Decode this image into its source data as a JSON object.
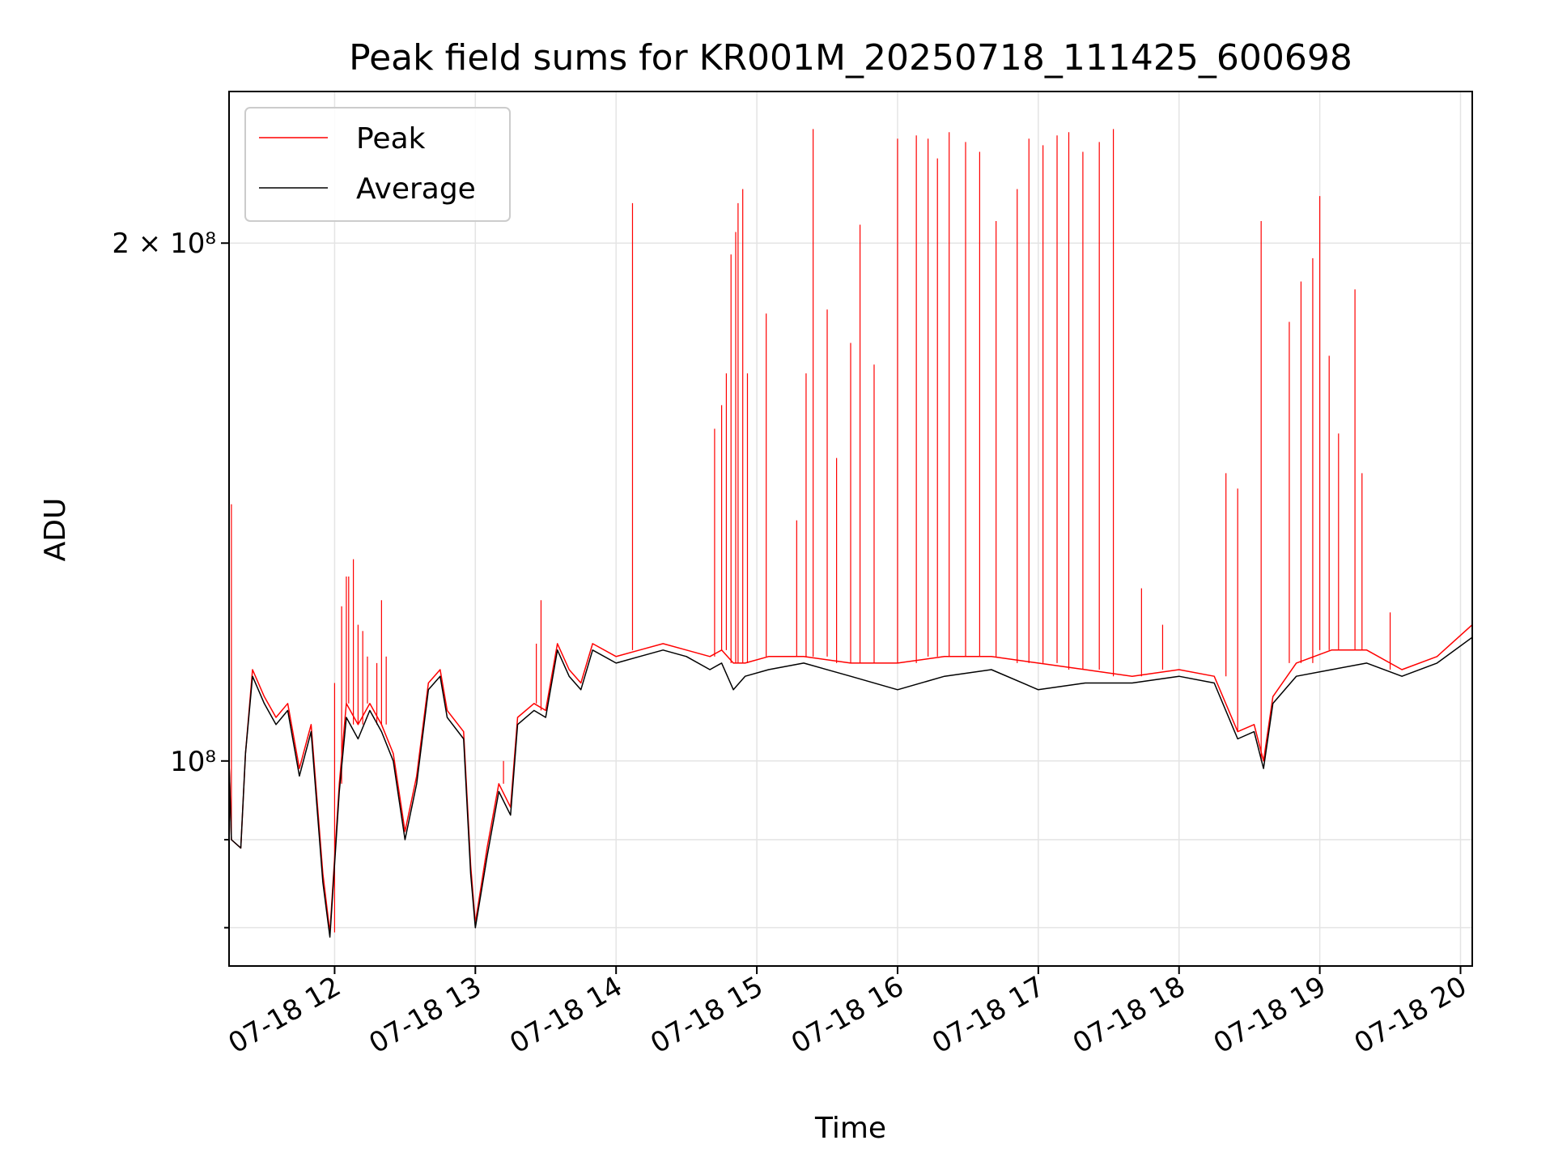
{
  "chart_data": {
    "type": "line",
    "title": "Peak field sums for KR001M_20250718_111425_600698",
    "xlabel": "Time",
    "ylabel": "ADU",
    "y_scale": "log",
    "ylim": [
      76000000,
      245000000
    ],
    "xlim": [
      "2025-07-18 11:15",
      "2025-07-18 20:05"
    ],
    "grid": true,
    "legend_position": "top-left",
    "x_ticks": [
      {
        "t": "2025-07-18 12:00",
        "label": "07-18 12"
      },
      {
        "t": "2025-07-18 13:00",
        "label": "07-18 13"
      },
      {
        "t": "2025-07-18 14:00",
        "label": "07-18 14"
      },
      {
        "t": "2025-07-18 15:00",
        "label": "07-18 15"
      },
      {
        "t": "2025-07-18 16:00",
        "label": "07-18 16"
      },
      {
        "t": "2025-07-18 17:00",
        "label": "07-18 17"
      },
      {
        "t": "2025-07-18 18:00",
        "label": "07-18 18"
      },
      {
        "t": "2025-07-18 19:00",
        "label": "07-18 19"
      },
      {
        "t": "2025-07-18 20:00",
        "label": "07-18 20"
      }
    ],
    "y_ticks": [
      {
        "v": 100000000,
        "label": "10⁸",
        "labeled": true
      },
      {
        "v": 200000000,
        "label": "2 × 10⁸",
        "labeled": true
      },
      {
        "v": 80000000,
        "label": "",
        "labeled": false
      },
      {
        "v": 90000000,
        "label": "",
        "labeled": false
      }
    ],
    "series": [
      {
        "name": "Average",
        "color": "#000000",
        "points": [
          [
            "2025-07-18 11:15",
            100000000
          ],
          [
            "2025-07-18 11:16",
            90000000
          ],
          [
            "2025-07-18 11:20",
            89000000
          ],
          [
            "2025-07-18 11:22",
            101000000
          ],
          [
            "2025-07-18 11:25",
            112000000
          ],
          [
            "2025-07-18 11:30",
            108000000
          ],
          [
            "2025-07-18 11:35",
            105000000
          ],
          [
            "2025-07-18 11:40",
            107000000
          ],
          [
            "2025-07-18 11:45",
            98000000
          ],
          [
            "2025-07-18 11:50",
            104000000
          ],
          [
            "2025-07-18 11:55",
            85000000
          ],
          [
            "2025-07-18 11:58",
            79000000
          ],
          [
            "2025-07-18 12:02",
            96000000
          ],
          [
            "2025-07-18 12:05",
            106000000
          ],
          [
            "2025-07-18 12:10",
            103000000
          ],
          [
            "2025-07-18 12:15",
            107000000
          ],
          [
            "2025-07-18 12:20",
            104000000
          ],
          [
            "2025-07-18 12:25",
            100000000
          ],
          [
            "2025-07-18 12:30",
            90000000
          ],
          [
            "2025-07-18 12:35",
            97000000
          ],
          [
            "2025-07-18 12:40",
            110000000
          ],
          [
            "2025-07-18 12:45",
            112000000
          ],
          [
            "2025-07-18 12:48",
            106000000
          ],
          [
            "2025-07-18 12:55",
            103000000
          ],
          [
            "2025-07-18 12:58",
            86000000
          ],
          [
            "2025-07-18 13:00",
            80000000
          ],
          [
            "2025-07-18 13:05",
            88000000
          ],
          [
            "2025-07-18 13:10",
            96000000
          ],
          [
            "2025-07-18 13:15",
            93000000
          ],
          [
            "2025-07-18 13:18",
            105000000
          ],
          [
            "2025-07-18 13:25",
            107000000
          ],
          [
            "2025-07-18 13:30",
            106000000
          ],
          [
            "2025-07-18 13:35",
            116000000
          ],
          [
            "2025-07-18 13:40",
            112000000
          ],
          [
            "2025-07-18 13:45",
            110000000
          ],
          [
            "2025-07-18 13:50",
            116000000
          ],
          [
            "2025-07-18 14:00",
            114000000
          ],
          [
            "2025-07-18 14:10",
            115000000
          ],
          [
            "2025-07-18 14:20",
            116000000
          ],
          [
            "2025-07-18 14:30",
            115000000
          ],
          [
            "2025-07-18 14:40",
            113000000
          ],
          [
            "2025-07-18 14:45",
            114000000
          ],
          [
            "2025-07-18 14:50",
            110000000
          ],
          [
            "2025-07-18 14:55",
            112000000
          ],
          [
            "2025-07-18 15:05",
            113000000
          ],
          [
            "2025-07-18 15:20",
            114000000
          ],
          [
            "2025-07-18 15:40",
            112000000
          ],
          [
            "2025-07-18 16:00",
            110000000
          ],
          [
            "2025-07-18 16:20",
            112000000
          ],
          [
            "2025-07-18 16:40",
            113000000
          ],
          [
            "2025-07-18 17:00",
            110000000
          ],
          [
            "2025-07-18 17:20",
            111000000
          ],
          [
            "2025-07-18 17:40",
            111000000
          ],
          [
            "2025-07-18 18:00",
            112000000
          ],
          [
            "2025-07-18 18:15",
            111000000
          ],
          [
            "2025-07-18 18:25",
            103000000
          ],
          [
            "2025-07-18 18:32",
            104000000
          ],
          [
            "2025-07-18 18:36",
            99000000
          ],
          [
            "2025-07-18 18:40",
            108000000
          ],
          [
            "2025-07-18 18:50",
            112000000
          ],
          [
            "2025-07-18 19:05",
            113000000
          ],
          [
            "2025-07-18 19:20",
            114000000
          ],
          [
            "2025-07-18 19:35",
            112000000
          ],
          [
            "2025-07-18 19:50",
            114000000
          ],
          [
            "2025-07-18 20:05",
            118000000
          ]
        ]
      },
      {
        "name": "Peak",
        "color": "#ff0000",
        "points": [
          [
            "2025-07-18 11:15",
            100000000
          ],
          [
            "2025-07-18 11:16",
            90000000
          ],
          [
            "2025-07-18 11:20",
            89000000
          ],
          [
            "2025-07-18 11:22",
            101000000
          ],
          [
            "2025-07-18 11:25",
            113000000
          ],
          [
            "2025-07-18 11:30",
            109000000
          ],
          [
            "2025-07-18 11:35",
            106000000
          ],
          [
            "2025-07-18 11:40",
            108000000
          ],
          [
            "2025-07-18 11:45",
            99000000
          ],
          [
            "2025-07-18 11:50",
            105000000
          ],
          [
            "2025-07-18 11:55",
            86000000
          ],
          [
            "2025-07-18 11:58",
            79500000
          ],
          [
            "2025-07-18 12:02",
            97000000
          ],
          [
            "2025-07-18 12:05",
            108000000
          ],
          [
            "2025-07-18 12:10",
            105000000
          ],
          [
            "2025-07-18 12:15",
            108000000
          ],
          [
            "2025-07-18 12:20",
            105000000
          ],
          [
            "2025-07-18 12:25",
            101000000
          ],
          [
            "2025-07-18 12:30",
            91000000
          ],
          [
            "2025-07-18 12:35",
            98000000
          ],
          [
            "2025-07-18 12:40",
            111000000
          ],
          [
            "2025-07-18 12:45",
            113000000
          ],
          [
            "2025-07-18 12:48",
            107000000
          ],
          [
            "2025-07-18 12:55",
            104000000
          ],
          [
            "2025-07-18 12:58",
            87000000
          ],
          [
            "2025-07-18 13:00",
            80500000
          ],
          [
            "2025-07-18 13:05",
            89000000
          ],
          [
            "2025-07-18 13:10",
            97000000
          ],
          [
            "2025-07-18 13:15",
            94000000
          ],
          [
            "2025-07-18 13:18",
            106000000
          ],
          [
            "2025-07-18 13:25",
            108000000
          ],
          [
            "2025-07-18 13:30",
            107000000
          ],
          [
            "2025-07-18 13:35",
            117000000
          ],
          [
            "2025-07-18 13:40",
            113000000
          ],
          [
            "2025-07-18 13:45",
            111000000
          ],
          [
            "2025-07-18 13:50",
            117000000
          ],
          [
            "2025-07-18 14:00",
            115000000
          ],
          [
            "2025-07-18 14:10",
            116000000
          ],
          [
            "2025-07-18 14:20",
            117000000
          ],
          [
            "2025-07-18 14:30",
            116000000
          ],
          [
            "2025-07-18 14:40",
            115000000
          ],
          [
            "2025-07-18 14:45",
            116000000
          ],
          [
            "2025-07-18 14:50",
            114000000
          ],
          [
            "2025-07-18 14:55",
            114000000
          ],
          [
            "2025-07-18 15:05",
            115000000
          ],
          [
            "2025-07-18 15:20",
            115000000
          ],
          [
            "2025-07-18 15:40",
            114000000
          ],
          [
            "2025-07-18 16:00",
            114000000
          ],
          [
            "2025-07-18 16:20",
            115000000
          ],
          [
            "2025-07-18 16:40",
            115000000
          ],
          [
            "2025-07-18 17:00",
            114000000
          ],
          [
            "2025-07-18 17:20",
            113000000
          ],
          [
            "2025-07-18 17:40",
            112000000
          ],
          [
            "2025-07-18 18:00",
            113000000
          ],
          [
            "2025-07-18 18:15",
            112000000
          ],
          [
            "2025-07-18 18:25",
            104000000
          ],
          [
            "2025-07-18 18:32",
            105000000
          ],
          [
            "2025-07-18 18:36",
            100000000
          ],
          [
            "2025-07-18 18:40",
            109000000
          ],
          [
            "2025-07-18 18:50",
            114000000
          ],
          [
            "2025-07-18 19:05",
            116000000
          ],
          [
            "2025-07-18 19:20",
            116000000
          ],
          [
            "2025-07-18 19:35",
            113000000
          ],
          [
            "2025-07-18 19:50",
            115000000
          ],
          [
            "2025-07-18 20:05",
            120000000
          ]
        ],
        "spikes": [
          [
            "2025-07-18 11:16",
            141000000
          ],
          [
            "2025-07-18 12:00",
            111000000
          ],
          [
            "2025-07-18 12:03",
            123000000
          ],
          [
            "2025-07-18 12:05",
            128000000
          ],
          [
            "2025-07-18 12:06",
            128000000
          ],
          [
            "2025-07-18 12:08",
            131000000
          ],
          [
            "2025-07-18 12:10",
            120000000
          ],
          [
            "2025-07-18 12:12",
            119000000
          ],
          [
            "2025-07-18 12:14",
            115000000
          ],
          [
            "2025-07-18 12:18",
            114000000
          ],
          [
            "2025-07-18 12:20",
            124000000
          ],
          [
            "2025-07-18 12:22",
            115000000
          ],
          [
            "2025-07-18 13:12",
            100000000
          ],
          [
            "2025-07-18 13:26",
            117000000
          ],
          [
            "2025-07-18 13:28",
            124000000
          ],
          [
            "2025-07-18 14:07",
            211000000
          ],
          [
            "2025-07-18 14:42",
            156000000
          ],
          [
            "2025-07-18 14:45",
            161000000
          ],
          [
            "2025-07-18 14:47",
            168000000
          ],
          [
            "2025-07-18 14:49",
            197000000
          ],
          [
            "2025-07-18 14:51",
            203000000
          ],
          [
            "2025-07-18 14:52",
            211000000
          ],
          [
            "2025-07-18 14:54",
            215000000
          ],
          [
            "2025-07-18 14:56",
            168000000
          ],
          [
            "2025-07-18 15:04",
            182000000
          ],
          [
            "2025-07-18 15:17",
            138000000
          ],
          [
            "2025-07-18 15:21",
            168000000
          ],
          [
            "2025-07-18 15:24",
            233000000
          ],
          [
            "2025-07-18 15:30",
            183000000
          ],
          [
            "2025-07-18 15:34",
            150000000
          ],
          [
            "2025-07-18 15:40",
            175000000
          ],
          [
            "2025-07-18 15:44",
            205000000
          ],
          [
            "2025-07-18 15:50",
            170000000
          ],
          [
            "2025-07-18 16:00",
            230000000
          ],
          [
            "2025-07-18 16:08",
            231000000
          ],
          [
            "2025-07-18 16:13",
            230000000
          ],
          [
            "2025-07-18 16:17",
            224000000
          ],
          [
            "2025-07-18 16:22",
            232000000
          ],
          [
            "2025-07-18 16:29",
            229000000
          ],
          [
            "2025-07-18 16:35",
            226000000
          ],
          [
            "2025-07-18 16:42",
            206000000
          ],
          [
            "2025-07-18 16:51",
            215000000
          ],
          [
            "2025-07-18 16:56",
            230000000
          ],
          [
            "2025-07-18 17:02",
            228000000
          ],
          [
            "2025-07-18 17:08",
            231000000
          ],
          [
            "2025-07-18 17:13",
            232000000
          ],
          [
            "2025-07-18 17:19",
            226000000
          ],
          [
            "2025-07-18 17:26",
            229000000
          ],
          [
            "2025-07-18 17:32",
            233000000
          ],
          [
            "2025-07-18 17:44",
            126000000
          ],
          [
            "2025-07-18 17:53",
            120000000
          ],
          [
            "2025-07-18 18:20",
            147000000
          ],
          [
            "2025-07-18 18:25",
            144000000
          ],
          [
            "2025-07-18 18:35",
            206000000
          ],
          [
            "2025-07-18 18:47",
            180000000
          ],
          [
            "2025-07-18 18:52",
            190000000
          ],
          [
            "2025-07-18 18:57",
            196000000
          ],
          [
            "2025-07-18 19:00",
            213000000
          ],
          [
            "2025-07-18 19:04",
            172000000
          ],
          [
            "2025-07-18 19:08",
            155000000
          ],
          [
            "2025-07-18 19:15",
            188000000
          ],
          [
            "2025-07-18 19:18",
            147000000
          ],
          [
            "2025-07-18 19:30",
            122000000
          ]
        ]
      }
    ]
  }
}
